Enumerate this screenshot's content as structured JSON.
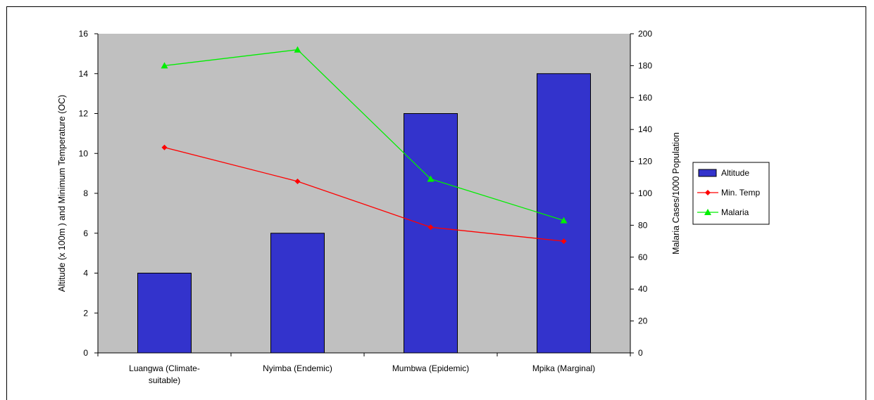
{
  "chart_data": {
    "type": "bar",
    "categories": [
      [
        "Luangwa (Climate-",
        "suitable)"
      ],
      [
        "Nyimba (Endemic)"
      ],
      [
        "Mumbwa (Epidemic)"
      ],
      [
        "Mpika (Marginal)"
      ]
    ],
    "series": [
      {
        "name": "Altitude",
        "type": "bar",
        "axis": "left",
        "values": [
          4,
          6,
          12,
          14
        ],
        "color": "#3333cc"
      },
      {
        "name": "Min. Temp",
        "type": "line",
        "axis": "left",
        "values": [
          10.3,
          8.6,
          6.3,
          5.6
        ],
        "color": "#ff0000",
        "marker": "diamond"
      },
      {
        "name": "Malaria",
        "type": "line",
        "axis": "right",
        "values": [
          180,
          190,
          109,
          83
        ],
        "color": "#00ee00",
        "marker": "triangle"
      }
    ],
    "ylabel_left": "Altitude (x 100m ) and Minimum Temperature (OC)",
    "ylabel_right": "Malaria Cases/1000 Population",
    "ylim_left": [
      0,
      16
    ],
    "yticks_left": [
      0,
      2,
      4,
      6,
      8,
      10,
      12,
      14,
      16
    ],
    "ylim_right": [
      0,
      200
    ],
    "yticks_right": [
      0,
      20,
      40,
      60,
      80,
      100,
      120,
      140,
      160,
      180,
      200
    ],
    "plot_background": "#c0c0c0",
    "grid": false,
    "legend_position": "right"
  }
}
